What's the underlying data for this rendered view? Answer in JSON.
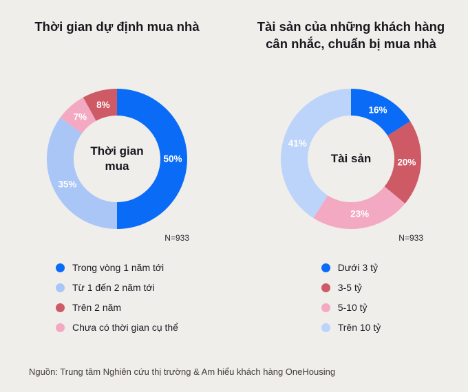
{
  "page": {
    "source_note": "Nguồn: Trung tâm Nghiên cứu thị trường & Am hiểu khách hàng OneHousing"
  },
  "colors": {
    "blue": "#0a6cf6",
    "light_blue": "#a9c6f7",
    "light_blue_2": "#bcd3fa",
    "red": "#ce5a65",
    "pink": "#f3a9c2",
    "background": "#f0eeeb"
  },
  "chart_data": [
    {
      "type": "pie",
      "title": "Thời gian dự định mua nhà",
      "center_label": "Thời gian mua",
      "n_label": "N=933",
      "legend_position": "bottom",
      "segments": [
        {
          "label": "Trong vòng 1 năm tới",
          "value": 50,
          "color": "#0a6cf6"
        },
        {
          "label": "Từ 1 đến 2 năm tới",
          "value": 35,
          "color": "#a9c6f7"
        },
        {
          "label": "Chưa có thời gian cụ thể",
          "value": 7,
          "color": "#f3a9c2"
        },
        {
          "label": "Trên 2 năm",
          "value": 8,
          "color": "#ce5a65"
        }
      ],
      "legend": [
        {
          "label": "Trong vòng 1 năm tới",
          "color": "#0a6cf6"
        },
        {
          "label": "Từ 1 đến 2 năm tới",
          "color": "#a9c6f7"
        },
        {
          "label": "Trên 2 năm",
          "color": "#ce5a65"
        },
        {
          "label": "Chưa có thời gian cụ thể",
          "color": "#f3a9c2"
        }
      ]
    },
    {
      "type": "pie",
      "title": "Tài sản của những khách hàng cân nhắc, chuẩn bị mua nhà",
      "center_label": "Tài sản",
      "n_label": "N=933",
      "legend_position": "bottom",
      "segments": [
        {
          "label": "Dưới 3 tỷ",
          "value": 16,
          "color": "#0a6cf6"
        },
        {
          "label": "3-5 tỷ",
          "value": 20,
          "color": "#ce5a65"
        },
        {
          "label": "5-10 tỷ",
          "value": 23,
          "color": "#f3a9c2"
        },
        {
          "label": "Trên 10 tỷ",
          "value": 41,
          "color": "#bcd3fa"
        }
      ],
      "legend": [
        {
          "label": "Dưới 3 tỷ",
          "color": "#0a6cf6"
        },
        {
          "label": "3-5 tỷ",
          "color": "#ce5a65"
        },
        {
          "label": "5-10 tỷ",
          "color": "#f3a9c2"
        },
        {
          "label": "Trên 10 tỷ",
          "color": "#bcd3fa"
        }
      ]
    }
  ]
}
